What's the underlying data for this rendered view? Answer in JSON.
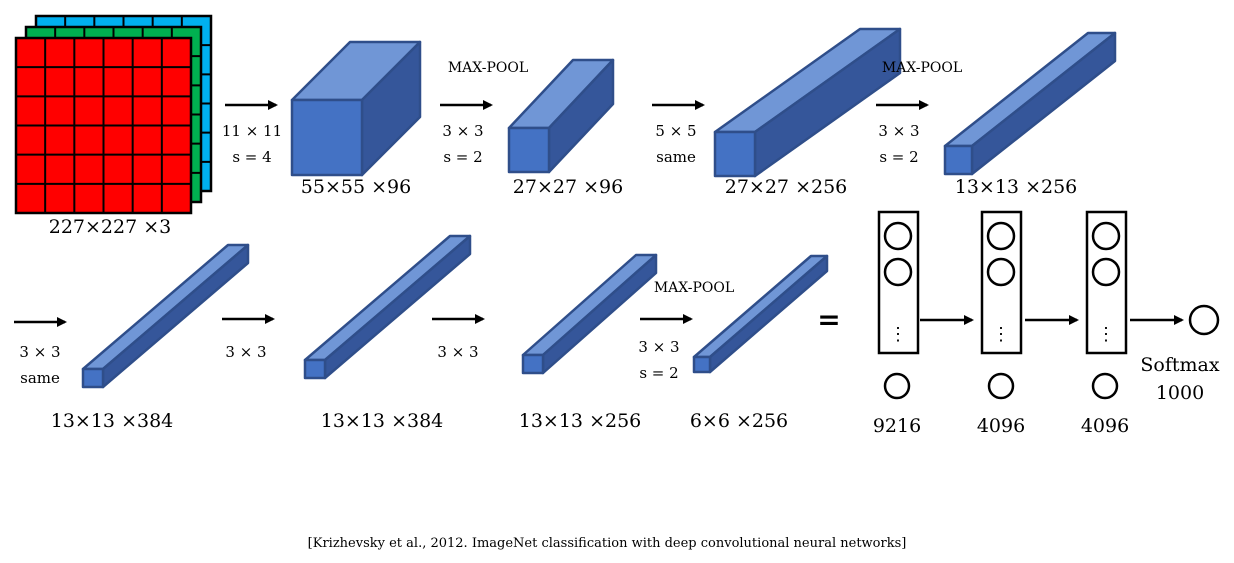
{
  "colors": {
    "face_front": "#4472C4",
    "face_top": "#7096D6",
    "face_side": "#35569A",
    "edge": "#2F4E8A",
    "grid_red": "#FF0000",
    "grid_green": "#00B050",
    "grid_blue": "#00B0F0"
  },
  "input": {
    "dim": "227×227 ×3"
  },
  "ops": {
    "conv1": {
      "line1": "11 × 11",
      "line2": "s = 4"
    },
    "pool1": {
      "title": "MAX-POOL",
      "line1": "3 × 3",
      "line2": "s = 2"
    },
    "conv2": {
      "line1": "5 × 5",
      "line2": "same"
    },
    "pool2": {
      "title": "MAX-POOL",
      "line1": "3 × 3",
      "line2": "s = 2"
    },
    "conv3": {
      "line1": "3 × 3",
      "line2": "same"
    },
    "conv4": {
      "line1": "3 × 3"
    },
    "conv5": {
      "line1": "3 × 3"
    },
    "pool3": {
      "title": "MAX-POOL",
      "line1": "3 × 3",
      "line2": "s = 2"
    }
  },
  "volumes": {
    "v1": "55×55 ×96",
    "v2": "27×27 ×96",
    "v3": "27×27 ×256",
    "v4": "13×13 ×256",
    "v5": "13×13 ×384",
    "v6": "13×13 ×384",
    "v7": "13×13 ×256",
    "v8": "6×6 ×256"
  },
  "equals": "=",
  "fc": {
    "dots": "⋮",
    "layer1": "9216",
    "layer2": "4096",
    "layer3": "4096",
    "softmax_label": "Softmax",
    "softmax_units": "1000"
  },
  "citation": "[Krizhevsky et al., 2012. ImageNet classification with deep convolutional neural networks]"
}
